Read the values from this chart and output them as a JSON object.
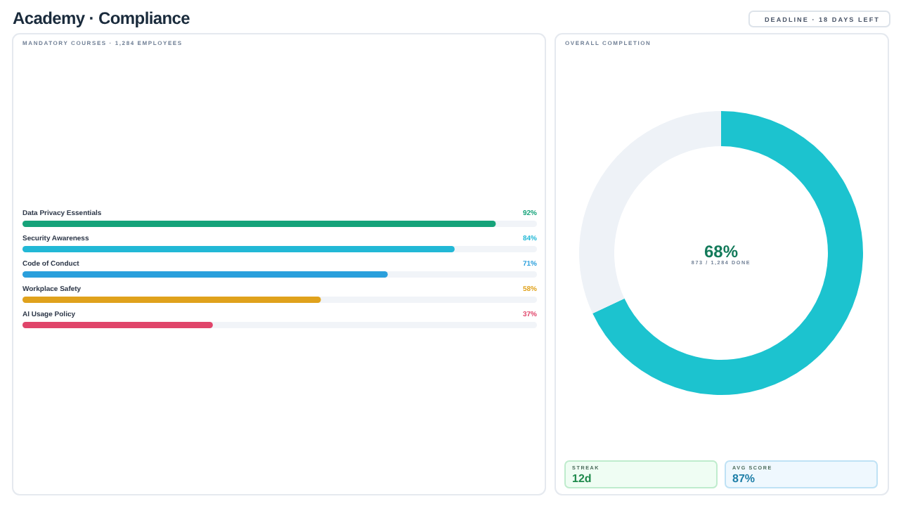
{
  "chart_data": [
    {
      "type": "other",
      "title": "Academy · Compliance",
      "annotations": [
        "DEADLINE · 18 DAYS LEFT"
      ]
    },
    {
      "type": "bar",
      "orientation": "horizontal",
      "title": "MANDATORY COURSES · 1,284 EMPLOYEES",
      "categories": [
        "Data Privacy Essentials",
        "Security Awareness",
        "Code of Conduct",
        "Workplace Safety",
        "AI Usage Policy"
      ],
      "values": [
        92,
        84,
        71,
        58,
        37
      ],
      "colors": [
        "#16a37a",
        "#22b8d6",
        "#2a9fdc",
        "#e0a21c",
        "#e0456a"
      ],
      "value_labels": [
        "92%",
        "84%",
        "71%",
        "58%",
        "37%"
      ],
      "xlim": [
        0,
        100
      ],
      "tick_labels": false
    },
    {
      "type": "donut",
      "title": "OVERALL COMPLETION",
      "categories": [
        null,
        null
      ],
      "values": [
        68,
        32
      ],
      "colors": [
        "#1cc3cf",
        "#eef2f7"
      ],
      "value_labels": [
        "68%",
        null
      ],
      "annotations": [
        "873 / 1,284 DONE"
      ]
    },
    {
      "type": "other",
      "annotations": [
        "STREAK",
        "12d",
        "AVG SCORE",
        "87%"
      ]
    }
  ]
}
